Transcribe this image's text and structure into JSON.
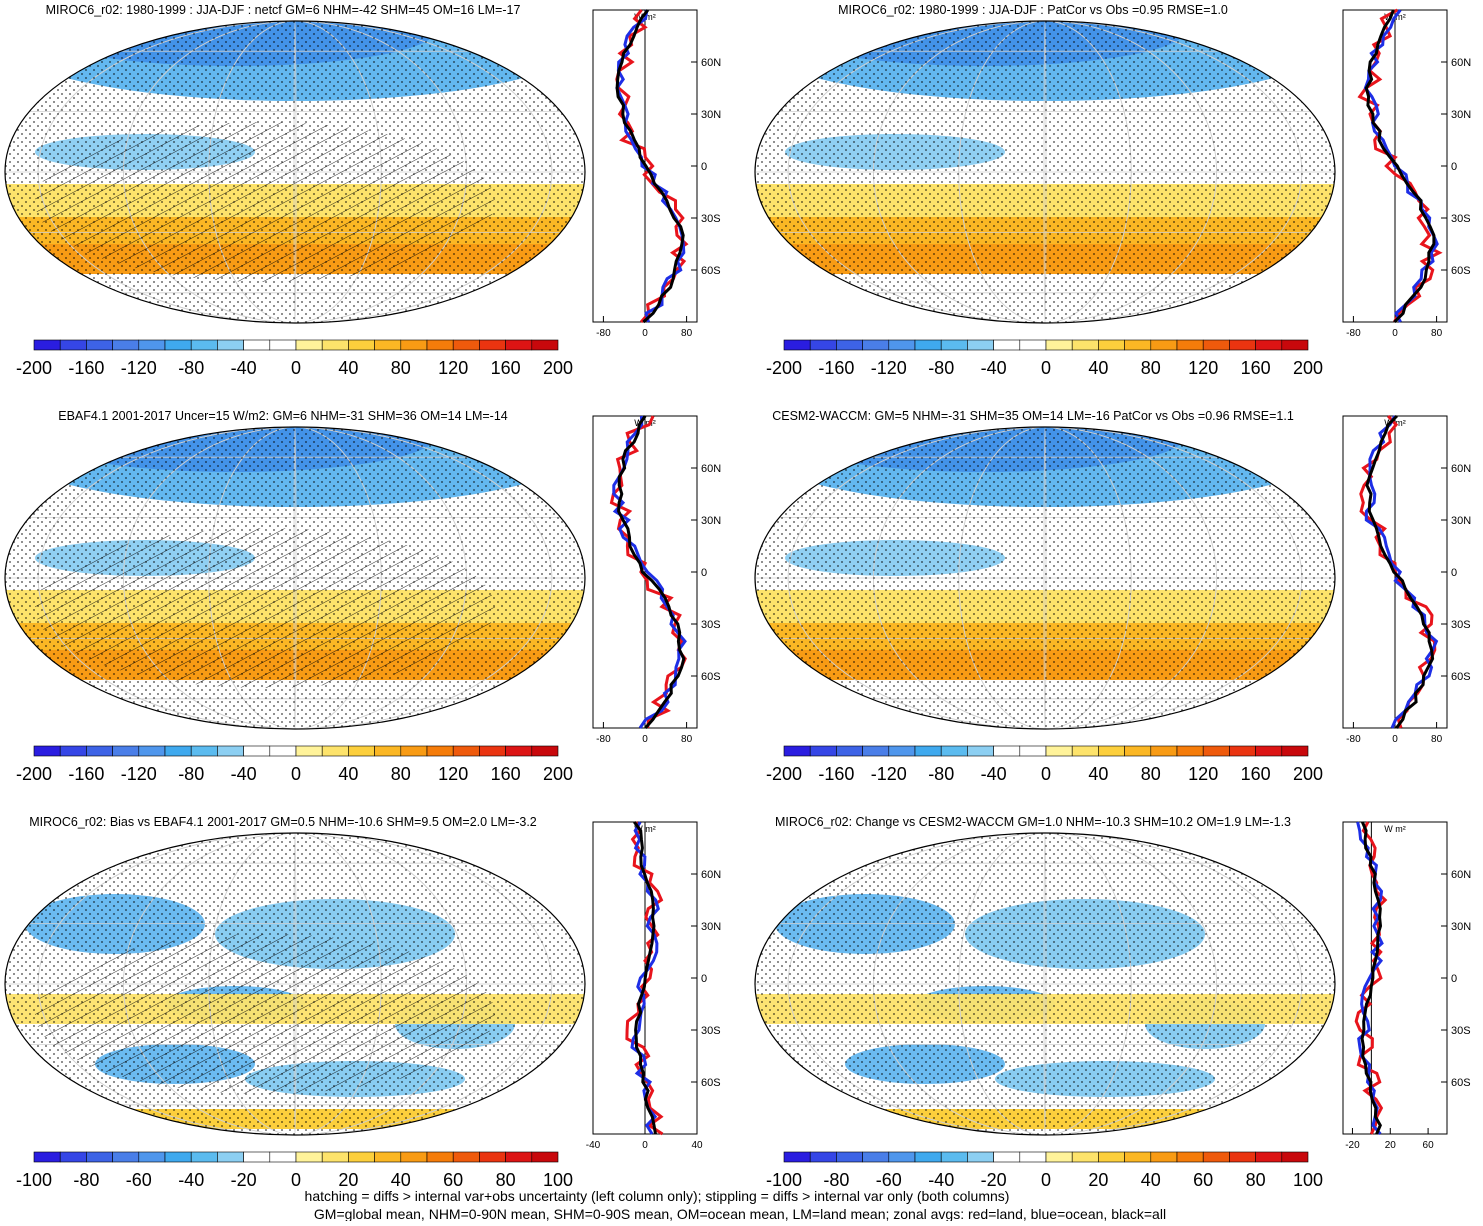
{
  "figure": {
    "footer_line1": "hatching = diffs > internal var+obs uncertainty (left column only); stippling = diffs > internal var only (both columns)",
    "footer_line2": "GM=global mean, NHM=0-90N mean, SHM=0-90S mean, OM=ocean mean, LM=land mean; zonal avgs: red=land, blue=ocean, black=all",
    "colors": {
      "land": "#e8141c",
      "ocean": "#1d2ee6",
      "all": "#000000"
    }
  },
  "chart_data": [
    {
      "type": "heatmap",
      "title": "MIROC6_r02: 1980-1999 : JJA-DJF : netcf GM=6 NHM=-42 SHM=45 OM=16 LM=-17",
      "colorbar_ticks": [
        "-200",
        "-160",
        "-120",
        "-80",
        "-40",
        "0",
        "40",
        "80",
        "120",
        "160",
        "200"
      ],
      "zonal": {
        "unit_label": "W m²",
        "lat_ticks": [
          "60N",
          "30N",
          "0",
          "30S",
          "60S"
        ],
        "x_ticks": [
          "-80",
          "0",
          "80"
        ],
        "xlim": [
          -100,
          100
        ]
      }
    },
    {
      "type": "heatmap",
      "title": "MIROC6_r02: 1980-1999 : JJA-DJF : PatCor vs Obs =0.95 RMSE=1.0",
      "colorbar_ticks": [
        "-200",
        "-160",
        "-120",
        "-80",
        "-40",
        "0",
        "40",
        "80",
        "120",
        "160",
        "200"
      ],
      "zonal": {
        "unit_label": "W m²",
        "lat_ticks": [
          "60N",
          "30N",
          "0",
          "30S",
          "60S"
        ],
        "x_ticks": [
          "-80",
          "0",
          "80"
        ],
        "xlim": [
          -100,
          100
        ]
      }
    },
    {
      "type": "heatmap",
      "title": "EBAF4.1 2001-2017 Uncer=15 W/m2: GM=6 NHM=-31 SHM=36 OM=14 LM=-14",
      "colorbar_ticks": [
        "-200",
        "-160",
        "-120",
        "-80",
        "-40",
        "0",
        "40",
        "80",
        "120",
        "160",
        "200"
      ],
      "zonal": {
        "unit_label": "W m²",
        "lat_ticks": [
          "60N",
          "30N",
          "0",
          "30S",
          "60S"
        ],
        "x_ticks": [
          "-80",
          "0",
          "80"
        ],
        "xlim": [
          -100,
          100
        ]
      }
    },
    {
      "type": "heatmap",
      "title": "CESM2-WACCM: GM=5 NHM=-31 SHM=35 OM=14 LM=-16 PatCor vs Obs =0.96 RMSE=1.1",
      "colorbar_ticks": [
        "-200",
        "-160",
        "-120",
        "-80",
        "-40",
        "0",
        "40",
        "80",
        "120",
        "160",
        "200"
      ],
      "zonal": {
        "unit_label": "W m²",
        "lat_ticks": [
          "60N",
          "30N",
          "0",
          "30S",
          "60S"
        ],
        "x_ticks": [
          "-80",
          "0",
          "80"
        ],
        "xlim": [
          -100,
          100
        ]
      }
    },
    {
      "type": "heatmap",
      "title": "MIROC6_r02: Bias vs EBAF4.1 2001-2017 GM=0.5 NHM=-10.6 SHM=9.5 OM=2.0 LM=-3.2",
      "colorbar_ticks": [
        "-100",
        "-80",
        "-60",
        "-40",
        "-20",
        "0",
        "20",
        "40",
        "60",
        "80",
        "100"
      ],
      "zonal": {
        "unit_label": "W m²",
        "lat_ticks": [
          "60N",
          "30N",
          "0",
          "30S",
          "60S"
        ],
        "x_ticks": [
          "-40",
          "0",
          "40"
        ],
        "xlim": [
          -40,
          40
        ]
      }
    },
    {
      "type": "heatmap",
      "title": "MIROC6_r02: Change vs CESM2-WACCM GM=1.0 NHM=-10.3 SHM=10.2 OM=1.9 LM=-1.3",
      "colorbar_ticks": [
        "-100",
        "-80",
        "-60",
        "-40",
        "-20",
        "0",
        "20",
        "40",
        "60",
        "80",
        "100"
      ],
      "zonal": {
        "unit_label": "W m²",
        "lat_ticks": [
          "60N",
          "30N",
          "0",
          "30S",
          "60S"
        ],
        "x_ticks": [
          "-20",
          "20",
          "60"
        ],
        "xlim": [
          -30,
          80
        ]
      }
    }
  ]
}
